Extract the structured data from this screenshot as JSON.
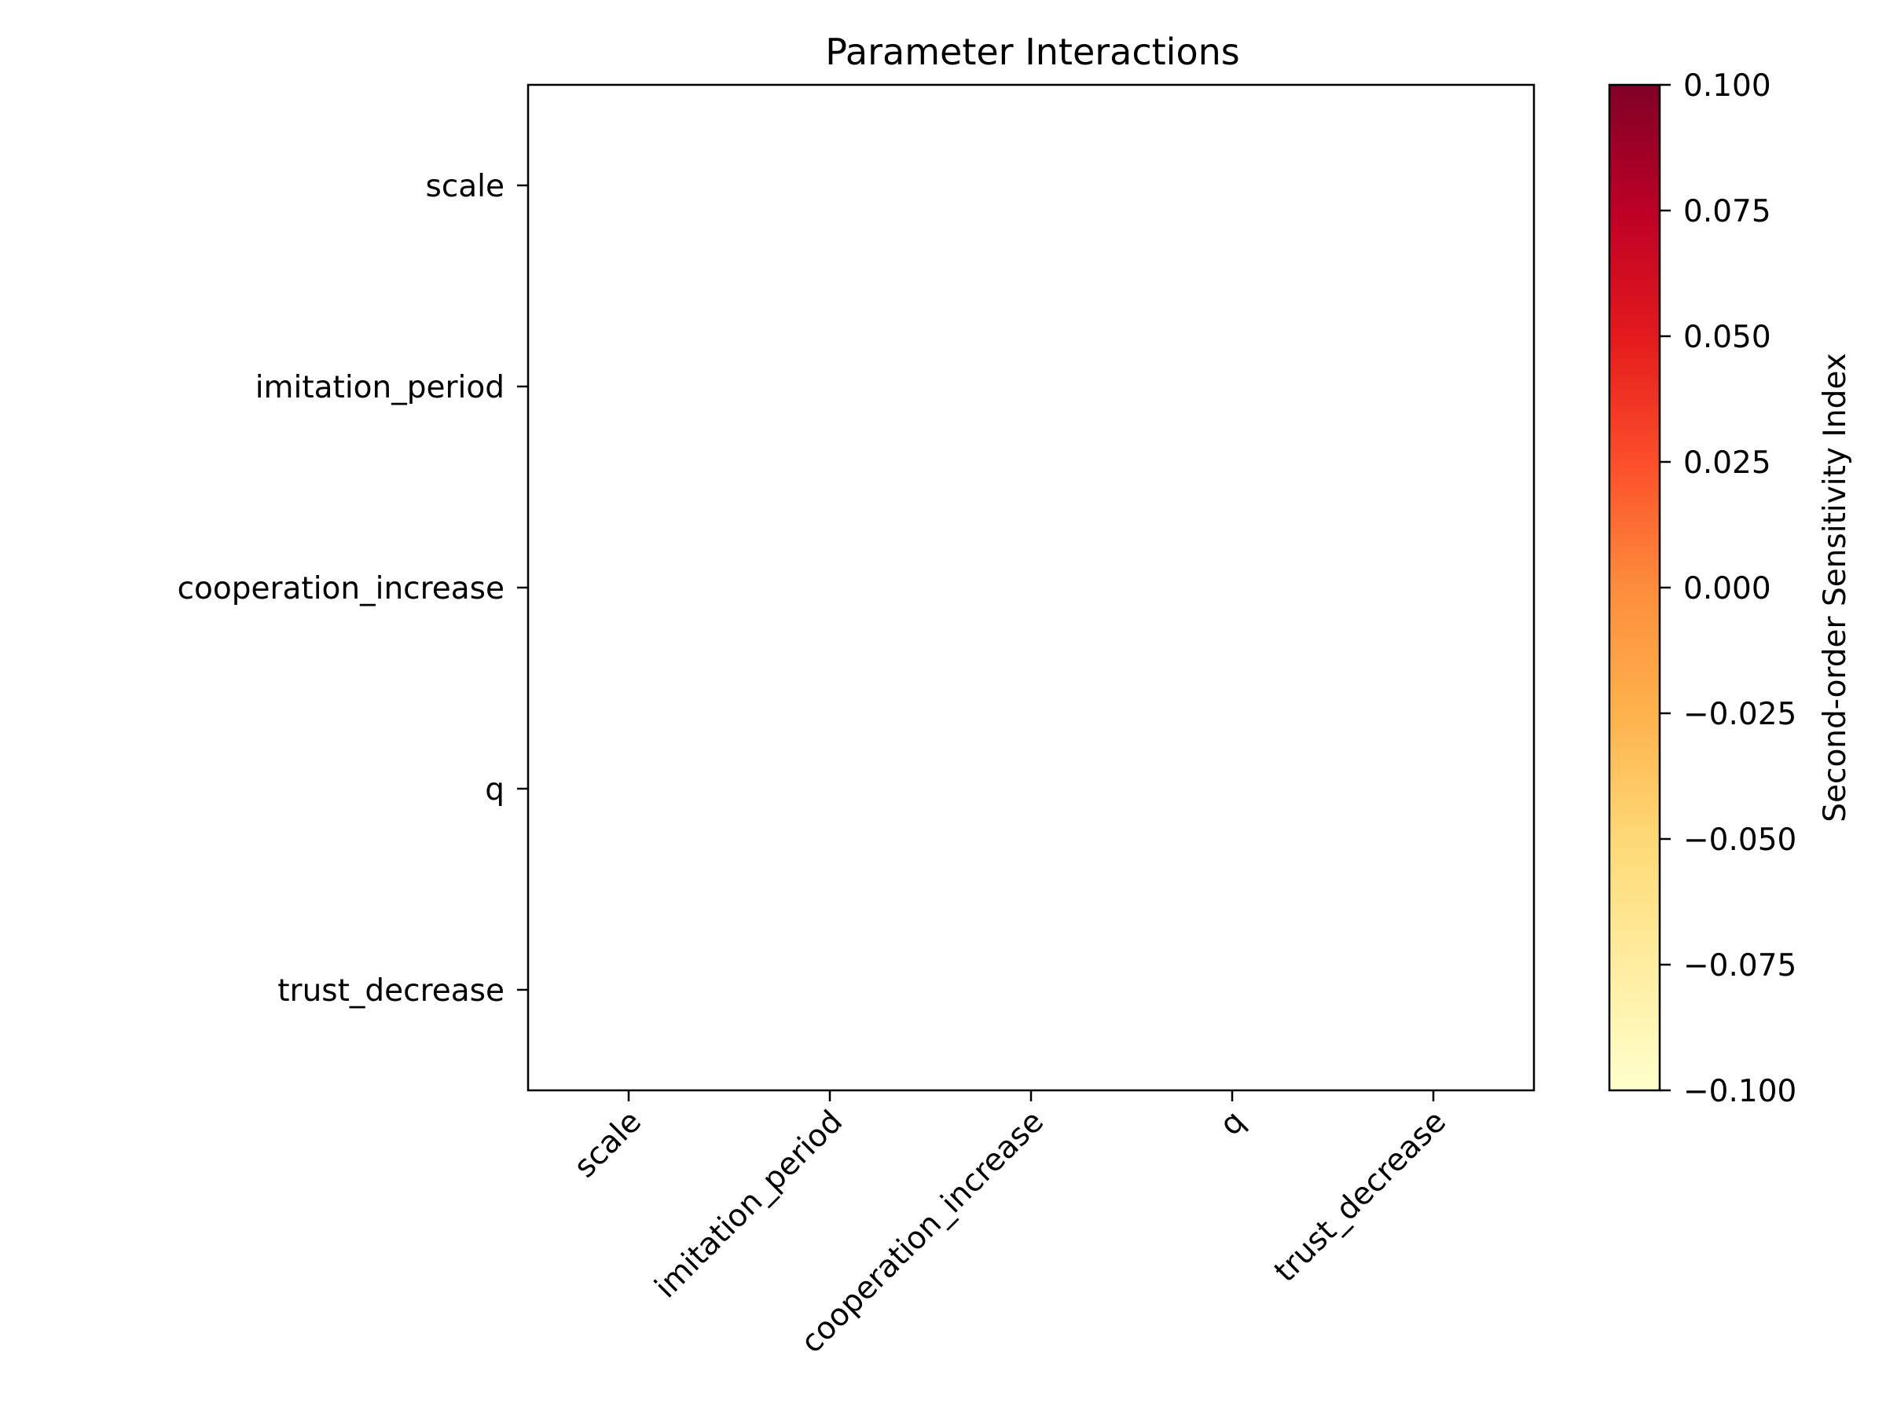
{
  "chart_data": {
    "type": "heatmap",
    "title": "Parameter Interactions",
    "xlabel": "",
    "ylabel": "",
    "x_categories": [
      "scale",
      "imitation_period",
      "cooperation_increase",
      "q",
      "trust_decrease"
    ],
    "y_categories": [
      "scale",
      "imitation_period",
      "cooperation_increase",
      "q",
      "trust_decrease"
    ],
    "values": [
      [
        null,
        null,
        null,
        null,
        null
      ],
      [
        null,
        null,
        null,
        null,
        null
      ],
      [
        null,
        null,
        null,
        null,
        null
      ],
      [
        null,
        null,
        null,
        null,
        null
      ],
      [
        null,
        null,
        null,
        null,
        null
      ]
    ],
    "colorbar": {
      "label": "Second-order Sensitivity Index",
      "range": [
        -0.1,
        0.1
      ],
      "ticks": [
        0.1,
        0.075,
        0.05,
        0.025,
        0.0,
        -0.025,
        -0.05,
        -0.075,
        -0.1
      ],
      "tick_labels": [
        "0.100",
        "0.075",
        "0.050",
        "0.025",
        "0.000",
        "−0.025",
        "−0.050",
        "−0.075",
        "−0.100"
      ],
      "colormap": "YlOrRd",
      "colors": [
        "#ffffcc",
        "#ffeda0",
        "#fed976",
        "#feb24c",
        "#fd8d3c",
        "#fc4e2a",
        "#e31a1c",
        "#bd0026",
        "#800026"
      ]
    },
    "x_tick_rotation": 45,
    "grid": false
  }
}
